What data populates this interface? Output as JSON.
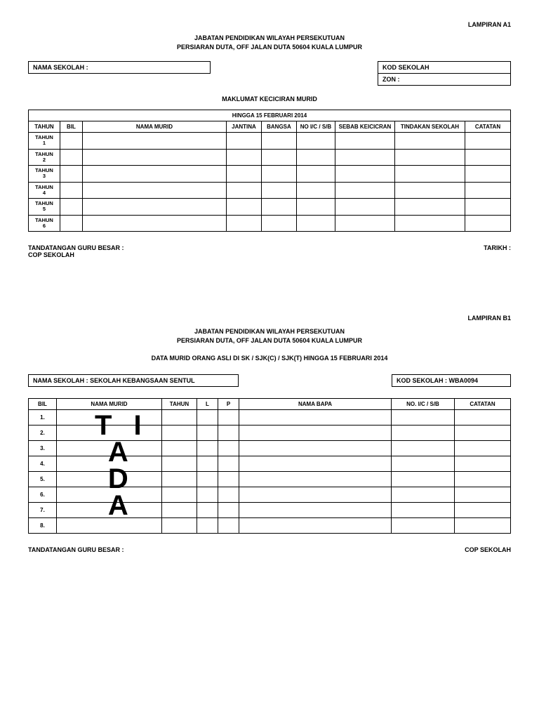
{
  "pageA": {
    "lampiran": "LAMPIRAN A1",
    "header1": "JABATAN PENDIDIKAN WILAYAH PERSEKUTUAN",
    "header2": "PERSIARAN DUTA, OFF JALAN DUTA 50604 KUALA LUMPUR",
    "nama_sekolah_label": "NAMA SEKOLAH  :",
    "kod_sekolah_label": "KOD SEKOLAH",
    "zon_label": "ZON  :",
    "section_title": "MAKLUMAT KECICIRAN MURID",
    "table_span": "HINGGA 15 FEBRUARI 2014",
    "columns": [
      "TAHUN",
      "BIL",
      "NAMA MURID",
      "JANTINA",
      "BANGSA",
      "NO I/C / S/B",
      "SEBAB KEICICRAN",
      "TINDAKAN SEKOLAH",
      "CATATAN"
    ],
    "col_widths": [
      "45px",
      "32px",
      "auto",
      "50px",
      "50px",
      "55px",
      "85px",
      "100px",
      "65px"
    ],
    "rows": [
      "TAHUN 1",
      "TAHUN 2",
      "TAHUN 3",
      "TAHUN 4",
      "TAHUN 5",
      "TAHUN 6"
    ],
    "sig_left1": "TANDATANGAN GURU BESAR  :",
    "sig_left2": "COP SEKOLAH",
    "sig_right": "TARIKH  :"
  },
  "pageB": {
    "lampiran": "LAMPIRAN B1",
    "header1": "JABATAN PENDIDIKAN WILAYAH PERSEKUTUAN",
    "header2": "PERSIARAN DUTA, OFF JALAN DUTA 50604 KUALA LUMPUR",
    "subtitle": "DATA MURID ORANG ASLI DI SK / SJK(C) / SJK(T) HINGGA 15 FEBRUARI 2014",
    "nama_sekolah": "NAMA SEKOLAH  :  SEKOLAH KEBANGSAAN SENTUL",
    "kod_sekolah": "KOD SEKOLAH  :  WBA0094",
    "columns": [
      "BIL",
      "NAMA MURID",
      "TAHUN",
      "L",
      "P",
      "NAMA BAPA",
      "NO. I/C / S/B",
      "CATATAN"
    ],
    "col_widths": [
      "40px",
      "150px",
      "50px",
      "30px",
      "30px",
      "auto",
      "90px",
      "80px"
    ],
    "rows": [
      "1.",
      "2.",
      "3.",
      "4.",
      "5.",
      "6.",
      "7.",
      "8."
    ],
    "watermark": [
      "T I",
      "A",
      "D",
      "A"
    ],
    "sig_left": "TANDATANGAN GURU BESAR  :",
    "sig_right": "COP SEKOLAH"
  }
}
